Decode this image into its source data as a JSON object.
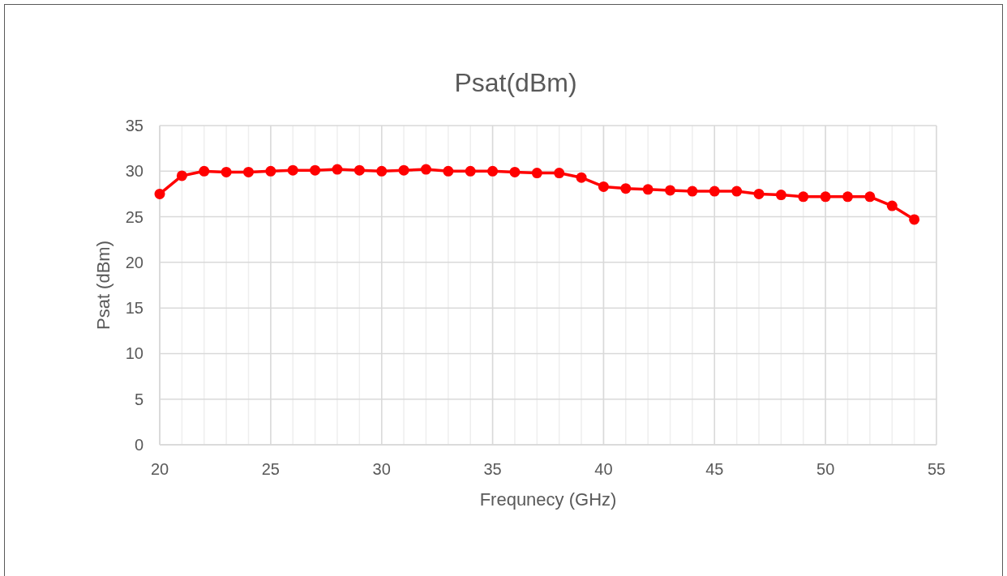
{
  "chart_data": {
    "type": "line",
    "title": "Psat(dBm)",
    "xlabel": "Frequnecy (GHz)",
    "ylabel": "Psat (dBm)",
    "x": [
      20,
      21,
      22,
      23,
      24,
      25,
      26,
      27,
      28,
      29,
      30,
      31,
      32,
      33,
      34,
      35,
      36,
      37,
      38,
      39,
      40,
      41,
      42,
      43,
      44,
      45,
      46,
      47,
      48,
      49,
      50,
      51,
      52,
      53,
      54
    ],
    "series": [
      {
        "color": "#ff0000",
        "values": [
          27.5,
          29.5,
          30.0,
          29.9,
          29.9,
          30.0,
          30.1,
          30.1,
          30.2,
          30.1,
          30.0,
          30.1,
          30.2,
          30.0,
          30.0,
          30.0,
          29.9,
          29.8,
          29.8,
          29.3,
          28.3,
          28.1,
          28.0,
          27.9,
          27.8,
          27.8,
          27.8,
          27.5,
          27.4,
          27.2,
          27.2,
          27.2,
          27.2,
          26.2,
          24.7
        ]
      }
    ],
    "xlim": [
      20,
      55
    ],
    "xticks": [
      20,
      25,
      30,
      35,
      40,
      45,
      50,
      55
    ],
    "ylim": [
      0,
      35
    ],
    "yticks": [
      0,
      5,
      10,
      15,
      20,
      25,
      30,
      35
    ],
    "grid": true,
    "marker": "circle",
    "line_style": "solid"
  }
}
